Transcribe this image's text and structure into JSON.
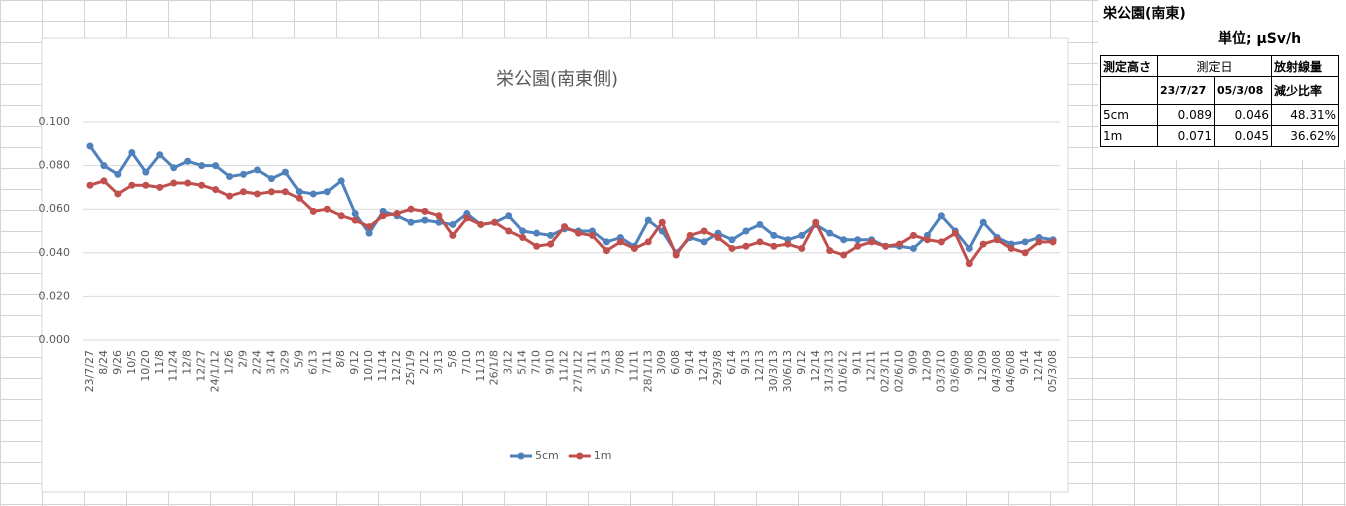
{
  "chart_data": {
    "type": "line",
    "title": "栄公園(南東側)",
    "categories": [
      "23/7/27",
      "8/24",
      "9/26",
      "10/5",
      "10/20",
      "11/8",
      "11/24",
      "12/8",
      "12/27",
      "24/1/12",
      "1/26",
      "2/9",
      "2/24",
      "3/14",
      "3/29",
      "5/9",
      "6/13",
      "7/11",
      "8/8",
      "9/12",
      "10/10",
      "11/14",
      "12/12",
      "25/1/9",
      "2/12",
      "3/13",
      "5/8",
      "7/10",
      "11/13",
      "26/1/8",
      "3/12",
      "5/14",
      "7/10",
      "9/10",
      "11/12",
      "27/1/12",
      "3/11",
      "5/13",
      "7/08",
      "11/11",
      "28/1/13",
      "3/09",
      "6/08",
      "9/14",
      "12/14",
      "29/3/8",
      "6/14",
      "9/13",
      "12/13",
      "30/3/13",
      "30/6/13",
      "9/12",
      "12/14",
      "31/3/13",
      "01/6/12",
      "9/11",
      "12/11",
      "02/3/11",
      "02/6/10",
      "9/09",
      "12/09",
      "03/3/10",
      "03/6/09",
      "9/08",
      "12/09",
      "04/3/08",
      "04/6/08",
      "9/14",
      "12/14",
      "05/3/08"
    ],
    "series": [
      {
        "name": "5cm",
        "color": "#4f81bd",
        "values": [
          0.089,
          0.08,
          0.076,
          0.086,
          0.077,
          0.085,
          0.079,
          0.082,
          0.08,
          0.08,
          0.075,
          0.076,
          0.078,
          0.074,
          0.077,
          0.068,
          0.067,
          0.068,
          0.073,
          0.058,
          0.049,
          0.059,
          0.057,
          0.054,
          0.055,
          0.054,
          0.053,
          0.058,
          0.053,
          0.054,
          0.057,
          0.05,
          0.049,
          0.048,
          0.051,
          0.05,
          0.05,
          0.045,
          0.047,
          0.043,
          0.055,
          0.05,
          0.04,
          0.047,
          0.045,
          0.049,
          0.046,
          0.05,
          0.053,
          0.048,
          0.046,
          0.048,
          0.053,
          0.049,
          0.046,
          0.046,
          0.046,
          0.043,
          0.043,
          0.042,
          0.048,
          0.057,
          0.05,
          0.042,
          0.054,
          0.047,
          0.044,
          0.045,
          0.047,
          0.046
        ]
      },
      {
        "name": "1m",
        "color": "#c0504d",
        "values": [
          0.071,
          0.073,
          0.067,
          0.071,
          0.071,
          0.07,
          0.072,
          0.072,
          0.071,
          0.069,
          0.066,
          0.068,
          0.067,
          0.068,
          0.068,
          0.065,
          0.059,
          0.06,
          0.057,
          0.055,
          0.052,
          0.057,
          0.058,
          0.06,
          0.059,
          0.057,
          0.048,
          0.056,
          0.053,
          0.054,
          0.05,
          0.047,
          0.043,
          0.044,
          0.052,
          0.049,
          0.048,
          0.041,
          0.045,
          0.042,
          0.045,
          0.054,
          0.039,
          0.048,
          0.05,
          0.047,
          0.042,
          0.043,
          0.045,
          0.043,
          0.044,
          0.042,
          0.054,
          0.041,
          0.039,
          0.043,
          0.045,
          0.043,
          0.044,
          0.048,
          0.046,
          0.045,
          0.049,
          0.035,
          0.044,
          0.046,
          0.042,
          0.04,
          0.045,
          0.045
        ]
      }
    ],
    "ylim": [
      0,
      0.1
    ],
    "yticks": [
      {
        "value": 0,
        "label": "0.000"
      },
      {
        "value": 0.02,
        "label": "0.020"
      },
      {
        "value": 0.04,
        "label": "0.040"
      },
      {
        "value": 0.06,
        "label": "0.060"
      },
      {
        "value": 0.08,
        "label": "0.080"
      },
      {
        "value": 0.1,
        "label": "0.100"
      }
    ],
    "grid": true,
    "legend": "bottom"
  },
  "table": {
    "title": "栄公園(南東)",
    "unit": "単位; μSv/h",
    "header": [
      "測定高さ",
      "測定日",
      "放射線量"
    ],
    "subheader": [
      "23/7/27",
      "05/3/08",
      "減少比率"
    ],
    "rows": [
      [
        "5cm",
        "0.089",
        "0.046",
        "48.31%"
      ],
      [
        "1m",
        "0.071",
        "0.045",
        "36.62%"
      ]
    ]
  }
}
